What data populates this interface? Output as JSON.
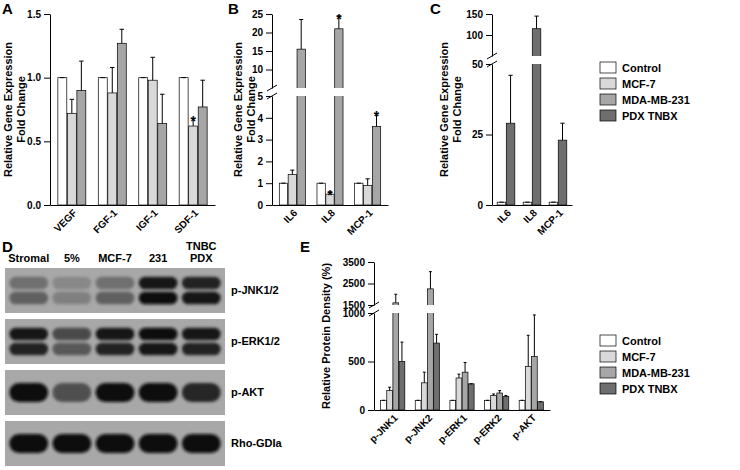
{
  "chart_data": [
    {
      "type": "bar",
      "title": "A",
      "ylabel": "Relative Gene Expression Fold Change",
      "categories": [
        "VEGF",
        "FGF-1",
        "IGF-1",
        "SDF-1"
      ],
      "ylim": [
        0,
        1.5
      ],
      "yticks": [
        {
          "value": 0,
          "label": "0.0"
        },
        0.5,
        {
          "value": 1,
          "label": "1.0"
        },
        1.5
      ],
      "series": [
        {
          "name": "Control",
          "color": "#ffffff",
          "values": [
            1,
            1,
            1,
            1
          ],
          "errors": [
            0,
            0,
            0,
            0
          ]
        },
        {
          "name": "MCF-7",
          "color": "#d9d9d9",
          "values": [
            0.72,
            0.88,
            0.98,
            0.62
          ],
          "errors": [
            0.11,
            0.2,
            0.18,
            0.06
          ]
        },
        {
          "name": "MDA-MB-231",
          "color": "#a6a6a6",
          "values": [
            0.9,
            1.27,
            0.64,
            0.77
          ],
          "errors": [
            0.23,
            0.11,
            0.23,
            0.21
          ]
        }
      ],
      "annotations": [
        {
          "text": "*",
          "category": "SDF-1",
          "series": "MCF-7"
        }
      ]
    },
    {
      "type": "bar",
      "title": "B",
      "ylabel": "Relative Gene Expression Fold Change",
      "categories": [
        "IL6",
        "IL8",
        "MCP-1"
      ],
      "segments": [
        {
          "ylim": [
            0,
            5
          ],
          "yticks": [
            0,
            1,
            2,
            3,
            4,
            5
          ]
        },
        {
          "ylim": [
            5,
            25
          ],
          "yticks": [
            10,
            15,
            20,
            25
          ]
        }
      ],
      "series": [
        {
          "name": "Control",
          "color": "#ffffff",
          "values": [
            1,
            1,
            1
          ],
          "errors": [
            0,
            0,
            0
          ]
        },
        {
          "name": "MCF-7",
          "color": "#d9d9d9",
          "values": [
            1.4,
            0.5,
            0.9
          ],
          "errors": [
            0.2,
            0.1,
            0.3
          ]
        },
        {
          "name": "MDA-MB-231",
          "color": "#a6a6a6",
          "values": [
            15.5,
            21,
            3.6
          ],
          "errors": [
            8,
            3.5,
            0.6
          ]
        }
      ],
      "annotations": [
        {
          "text": "*",
          "category": "IL8",
          "series": "MCF-7"
        },
        {
          "text": "*",
          "category": "IL8",
          "series": "MDA-MB-231"
        },
        {
          "text": "*",
          "category": "MCP-1",
          "series": "MDA-MB-231"
        }
      ]
    },
    {
      "type": "bar",
      "title": "C",
      "ylabel": "Relative Gene Expression Fold Change",
      "categories": [
        "IL6",
        "IL8",
        "MCP-1"
      ],
      "segments": [
        {
          "ylim": [
            0,
            50
          ],
          "yticks": [
            0,
            25,
            50
          ]
        },
        {
          "ylim": [
            50,
            150
          ],
          "yticks": [
            100,
            150
          ]
        }
      ],
      "series": [
        {
          "name": "Control",
          "color": "#ffffff",
          "values": [
            1,
            1,
            1
          ],
          "errors": [
            0,
            0,
            0
          ]
        },
        {
          "name": "MCF-7",
          "color": "#d9d9d9",
          "values": [
            null,
            null,
            null
          ],
          "errors": [
            null,
            null,
            null
          ]
        },
        {
          "name": "MDA-MB-231",
          "color": "#a6a6a6",
          "values": [
            null,
            null,
            null
          ],
          "errors": [
            null,
            null,
            null
          ]
        },
        {
          "name": "PDX TNBX",
          "color": "#6e6e6e",
          "values": [
            29,
            115,
            23
          ],
          "errors": [
            17,
            30,
            6
          ]
        }
      ],
      "legend": "right"
    },
    {
      "type": "blot",
      "title": "D",
      "lanes": [
        "Stromal",
        "5%",
        "MCF-7",
        "231",
        "TNBC PDX"
      ],
      "rows": [
        {
          "label": "p-JNK1/2",
          "bands": [
            [
              0.35,
              0.2,
              0.35,
              0.9,
              0.85
            ],
            [
              0.45,
              0.25,
              0.45,
              0.95,
              0.9
            ]
          ]
        },
        {
          "label": "p-ERK1/2",
          "bands": [
            [
              0.9,
              0.6,
              0.9,
              0.95,
              0.9
            ],
            [
              0.85,
              0.5,
              0.85,
              0.9,
              0.85
            ]
          ]
        },
        {
          "label": "p-AKT",
          "bands": [
            [
              0.95,
              0.55,
              0.95,
              0.95,
              0.8
            ]
          ]
        },
        {
          "label": "Rho-GDIa",
          "bands": [
            [
              0.95,
              0.95,
              0.95,
              0.95,
              0.95
            ]
          ]
        }
      ]
    },
    {
      "type": "bar",
      "title": "E",
      "ylabel": "Relative Protein Density (%)",
      "categories": [
        "p-JNK1",
        "p-JNK2",
        "p-ERK1",
        "p-ERK2",
        "p-AKT"
      ],
      "segments": [
        {
          "ylim": [
            0,
            1000
          ],
          "yticks": [
            0,
            500,
            1000
          ]
        },
        {
          "ylim": [
            1500,
            3500
          ],
          "yticks": [
            1500,
            2500,
            3500
          ]
        }
      ],
      "series": [
        {
          "name": "Control",
          "color": "#ffffff",
          "values": [
            100,
            100,
            100,
            100,
            100
          ],
          "errors": [
            0,
            0,
            0,
            0,
            0
          ]
        },
        {
          "name": "MCF-7",
          "color": "#d9d9d9",
          "values": [
            200,
            280,
            330,
            150,
            450
          ],
          "errors": [
            35,
            110,
            40,
            15,
            320
          ]
        },
        {
          "name": "MDA-MB-231",
          "color": "#a6a6a6",
          "values": [
            1600,
            2250,
            390,
            175,
            550
          ],
          "errors": [
            400,
            800,
            100,
            25,
            430
          ]
        },
        {
          "name": "PDX TNBX",
          "color": "#6e6e6e",
          "values": [
            500,
            690,
            270,
            140,
            85
          ],
          "errors": [
            200,
            90,
            0,
            10,
            0
          ]
        }
      ],
      "legend": "right"
    }
  ]
}
